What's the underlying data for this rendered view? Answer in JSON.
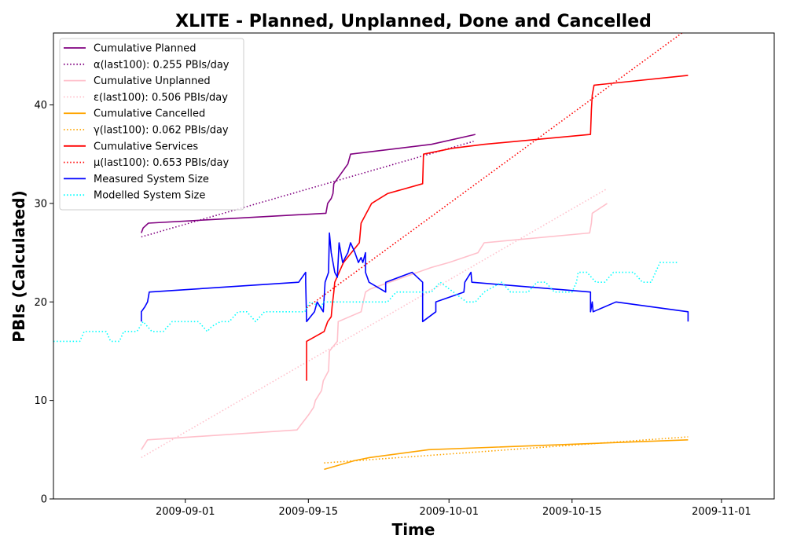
{
  "chart_data": {
    "type": "line",
    "title": "XLITE - Planned, Unplanned, Done  and Cancelled",
    "xlabel": "Time",
    "ylabel": "PBIs (Calculated)",
    "xlim_days": [
      -15,
      67
    ],
    "ylim": [
      0,
      47.3
    ],
    "x_ticks": [
      {
        "day": 0,
        "label": "2009-09-01"
      },
      {
        "day": 14,
        "label": "2009-09-15"
      },
      {
        "day": 30,
        "label": "2009-10-01"
      },
      {
        "day": 44,
        "label": "2009-10-15"
      },
      {
        "day": 61,
        "label": "2009-11-01"
      }
    ],
    "y_ticks": [
      0,
      10,
      20,
      30,
      40
    ],
    "x_origin_date": "2009-09-01",
    "legend_position": "upper-left",
    "series": [
      {
        "name": "Cumulative Planned",
        "color": "#800080",
        "style": "solid",
        "points": [
          [
            -5,
            27
          ],
          [
            -4.8,
            27.5
          ],
          [
            -4.2,
            28
          ],
          [
            16,
            29
          ],
          [
            16.2,
            30
          ],
          [
            16.6,
            30.5
          ],
          [
            16.8,
            31
          ],
          [
            16.9,
            32
          ],
          [
            18.5,
            34
          ],
          [
            18.8,
            35
          ],
          [
            28,
            36
          ],
          [
            33,
            37
          ]
        ]
      },
      {
        "name": "α(last100): 0.255 PBIs/day",
        "color": "#800080",
        "style": "dotted",
        "points": [
          [
            -5,
            26.6
          ],
          [
            32.8,
            36.3
          ]
        ]
      },
      {
        "name": "Cumulative Unplanned",
        "color": "#ffc0cb",
        "style": "solid",
        "points": [
          [
            -5,
            5
          ],
          [
            -4.3,
            6
          ],
          [
            12.7,
            7
          ],
          [
            14,
            8.5
          ],
          [
            14.6,
            9.3
          ],
          [
            14.8,
            10
          ],
          [
            15.5,
            11
          ],
          [
            15.7,
            12
          ],
          [
            16.3,
            13
          ],
          [
            16.4,
            15
          ],
          [
            17.3,
            16
          ],
          [
            17.4,
            18
          ],
          [
            20,
            19
          ],
          [
            20.5,
            21
          ],
          [
            21,
            21.3
          ],
          [
            28,
            23.5
          ],
          [
            30,
            24
          ],
          [
            33.3,
            25
          ],
          [
            34,
            26
          ],
          [
            46,
            27
          ],
          [
            46.2,
            28
          ],
          [
            46.3,
            29
          ],
          [
            48,
            30
          ]
        ]
      },
      {
        "name": "ε(last100): 0.506 PBIs/day",
        "color": "#ffc0cb",
        "style": "dotted",
        "points": [
          [
            -5,
            4.2
          ],
          [
            48,
            31.5
          ]
        ]
      },
      {
        "name": "Cumulative Cancelled",
        "color": "#ffa500",
        "style": "solid",
        "points": [
          [
            15.8,
            3
          ],
          [
            19.3,
            3.9
          ],
          [
            21,
            4.2
          ],
          [
            27.7,
            5
          ],
          [
            57.2,
            6
          ]
        ]
      },
      {
        "name": "γ(last100): 0.062 PBIs/day",
        "color": "#ffa500",
        "style": "dotted",
        "points": [
          [
            15.8,
            3.65
          ],
          [
            57.2,
            6.3
          ]
        ]
      },
      {
        "name": "Cumulative Services",
        "color": "#ff0000",
        "style": "solid",
        "points": [
          [
            13.8,
            12
          ],
          [
            13.8,
            16
          ],
          [
            15.8,
            17
          ],
          [
            16.2,
            18
          ],
          [
            16.6,
            18.5
          ],
          [
            16.7,
            19.5
          ],
          [
            16.9,
            21
          ],
          [
            17,
            22
          ],
          [
            18,
            24
          ],
          [
            19.8,
            26
          ],
          [
            19.9,
            27
          ],
          [
            20,
            28
          ],
          [
            20.6,
            29
          ],
          [
            21.2,
            30
          ],
          [
            23,
            31
          ],
          [
            27,
            32
          ],
          [
            27.1,
            35
          ],
          [
            30.4,
            35.6
          ],
          [
            34,
            36
          ],
          [
            46.1,
            37
          ],
          [
            46.2,
            39.5
          ],
          [
            46.3,
            41
          ],
          [
            46.5,
            42
          ],
          [
            57.2,
            43
          ]
        ]
      },
      {
        "name": "μ(last100): 0.653 PBIs/day",
        "color": "#ff0000",
        "style": "dotted",
        "points": [
          [
            13.8,
            19.4
          ],
          [
            56.5,
            47.3
          ]
        ]
      },
      {
        "name": "Measured System Size",
        "color": "#0000ff",
        "style": "solid",
        "points": [
          [
            -5,
            18
          ],
          [
            -5,
            19
          ],
          [
            -4.6,
            19.5
          ],
          [
            -4.3,
            20
          ],
          [
            -4.1,
            21
          ],
          [
            12.9,
            22
          ],
          [
            13.7,
            23
          ],
          [
            13.7,
            22
          ],
          [
            13.8,
            18
          ],
          [
            14.7,
            19
          ],
          [
            15,
            20
          ],
          [
            15.7,
            19
          ],
          [
            15.9,
            22
          ],
          [
            16.3,
            23
          ],
          [
            16.4,
            27
          ],
          [
            16.6,
            25
          ],
          [
            17,
            23
          ],
          [
            17.3,
            22.5
          ],
          [
            17.5,
            26
          ],
          [
            17.9,
            24
          ],
          [
            18.5,
            25
          ],
          [
            18.8,
            26
          ],
          [
            19.3,
            25
          ],
          [
            19.7,
            24
          ],
          [
            20,
            24.5
          ],
          [
            20.2,
            24
          ],
          [
            20.5,
            25
          ],
          [
            20.5,
            23
          ],
          [
            20.9,
            22
          ],
          [
            22.8,
            21
          ],
          [
            22.8,
            22
          ],
          [
            25.8,
            23
          ],
          [
            27,
            22
          ],
          [
            27,
            18
          ],
          [
            28.5,
            19
          ],
          [
            28.5,
            20
          ],
          [
            31.7,
            21
          ],
          [
            31.8,
            22
          ],
          [
            32.5,
            23
          ],
          [
            32.6,
            22
          ],
          [
            46.1,
            21
          ],
          [
            46.1,
            19
          ],
          [
            46.3,
            20
          ],
          [
            46.4,
            19
          ],
          [
            49,
            20
          ],
          [
            57.2,
            19
          ],
          [
            57.2,
            18
          ]
        ]
      },
      {
        "name": "Modelled System Size",
        "color": "#00ffff",
        "style": "dotted",
        "points": [
          [
            -15,
            16
          ],
          [
            -12,
            16
          ],
          [
            -11.5,
            17
          ],
          [
            -9,
            17
          ],
          [
            -8.5,
            16
          ],
          [
            -7.5,
            16
          ],
          [
            -7,
            17
          ],
          [
            -5.5,
            17
          ],
          [
            -4.8,
            18
          ],
          [
            -3.8,
            17
          ],
          [
            -2.5,
            17
          ],
          [
            -1.5,
            18
          ],
          [
            1.5,
            18
          ],
          [
            2.5,
            17
          ],
          [
            3,
            17.5
          ],
          [
            4,
            18
          ],
          [
            5,
            18
          ],
          [
            6,
            19
          ],
          [
            7,
            19
          ],
          [
            8,
            18
          ],
          [
            9,
            19
          ],
          [
            13.6,
            19
          ],
          [
            14.2,
            20
          ],
          [
            15.5,
            19.5
          ],
          [
            15.7,
            20
          ],
          [
            23,
            20
          ],
          [
            24,
            21
          ],
          [
            28,
            21
          ],
          [
            29,
            22
          ],
          [
            30.5,
            21
          ],
          [
            32,
            20
          ],
          [
            33,
            20
          ],
          [
            34,
            21
          ],
          [
            36,
            22
          ],
          [
            37,
            21
          ],
          [
            39,
            21
          ],
          [
            40,
            22
          ],
          [
            41,
            22
          ],
          [
            42,
            21
          ],
          [
            44,
            21
          ],
          [
            44.5,
            22
          ],
          [
            44.7,
            23
          ],
          [
            45.7,
            23
          ],
          [
            46.7,
            22
          ],
          [
            47.7,
            22
          ],
          [
            48.7,
            23
          ],
          [
            51,
            23
          ],
          [
            52,
            22
          ],
          [
            53,
            22
          ],
          [
            54,
            24
          ],
          [
            56,
            24
          ]
        ]
      }
    ]
  }
}
